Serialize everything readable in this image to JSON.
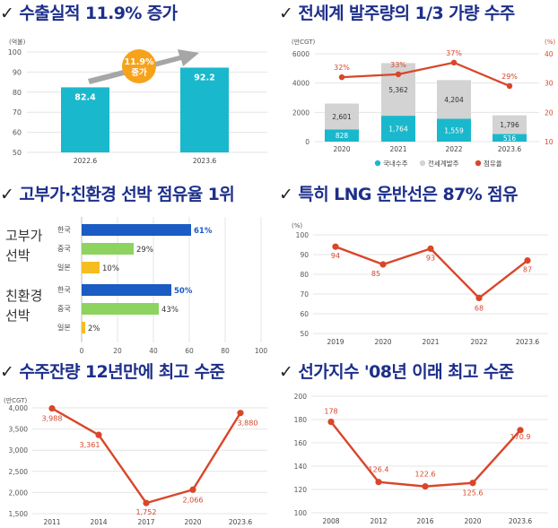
{
  "colors": {
    "title": "#1d2f8a",
    "teal": "#1ab8cc",
    "gray": "#d3d3d3",
    "red": "#d9462a",
    "blue": "#1a5bc4",
    "green": "#8dd35f",
    "yellow": "#f6bd21",
    "orange": "#f7a21b",
    "arrow": "#a6a6a6",
    "grid": "#e4e4e4"
  },
  "panels": [
    {
      "title": "✓ 수출실적 11.9% 증가"
    },
    {
      "title": "✓ 전세계 발주량의 1/3 가량 수주"
    },
    {
      "title": "✓ 고부가·친환경 선박 점유율 1위"
    },
    {
      "title": "✓ 특히 LNG 운반선은 87% 점유"
    },
    {
      "title": "✓ 수주잔량 12년만에 최고 수준"
    },
    {
      "title": "✓ 선가지수 '08년 이래 최고 수준"
    }
  ],
  "chart_data": [
    {
      "type": "bar",
      "title": "수출실적 11.9% 증가",
      "unit": "(억불)",
      "categories": [
        "2022.6",
        "2023.6"
      ],
      "values": [
        82.4,
        92.2
      ],
      "ylim": [
        50,
        100
      ],
      "yticks": [
        50,
        60,
        70,
        80,
        90,
        100
      ],
      "annotation": [
        "11.9%",
        "증가"
      ]
    },
    {
      "type": "bar",
      "title": "전세계 발주량의 1/3 가량 수주",
      "unit_left": "(만CGT)",
      "unit_right": "(%)",
      "categories": [
        "2020",
        "2021",
        "2022",
        "2023.6"
      ],
      "series": [
        {
          "name": "국내수주",
          "values": [
            828,
            1764,
            1559,
            516
          ]
        },
        {
          "name": "전세계발주",
          "values": [
            2601,
            5362,
            4204,
            1796
          ]
        },
        {
          "name": "점유율",
          "values": [
            32,
            33,
            37,
            29
          ]
        }
      ],
      "ylim_left": [
        0,
        6000
      ],
      "yticks_left": [
        0,
        2000,
        4000,
        6000
      ],
      "ylim_right": [
        10,
        40
      ],
      "yticks_right": [
        10,
        20,
        30,
        40
      ],
      "value_labels": {
        "domestic": [
          "828",
          "1,764",
          "1,559",
          "516"
        ],
        "world": [
          "2,601",
          "5,362",
          "4,204",
          "1,796"
        ],
        "share": [
          "32%",
          "33%",
          "37%",
          "29%"
        ]
      },
      "legend": [
        "국내수주",
        "전세계발주",
        "점유율"
      ]
    },
    {
      "type": "bar",
      "title": "고부가·친환경 선박 점유율 1위",
      "groups": [
        {
          "name": [
            "고부가",
            "선박"
          ],
          "bars": [
            {
              "country": "한국",
              "value": 61,
              "label": "61%"
            },
            {
              "country": "중국",
              "value": 29,
              "label": "29%"
            },
            {
              "country": "일본",
              "value": 10,
              "label": "10%"
            }
          ]
        },
        {
          "name": [
            "친환경",
            "선박"
          ],
          "bars": [
            {
              "country": "한국",
              "value": 50,
              "label": "50%"
            },
            {
              "country": "중국",
              "value": 43,
              "label": "43%"
            },
            {
              "country": "일본",
              "value": 2,
              "label": "2%"
            }
          ]
        }
      ],
      "xlim": [
        0,
        100
      ],
      "xticks": [
        0,
        20,
        40,
        60,
        80,
        100
      ]
    },
    {
      "type": "line",
      "title": "특히 LNG 운반선은 87% 점유",
      "unit": "(%)",
      "x": [
        "2019",
        "2020",
        "2021",
        "2022",
        "2023.6"
      ],
      "values": [
        94,
        85,
        93,
        68,
        87
      ],
      "ylim": [
        50,
        100
      ],
      "yticks": [
        50,
        60,
        70,
        80,
        90,
        100
      ]
    },
    {
      "type": "line",
      "title": "수주잔량 12년만에 최고 수준",
      "unit": "(만CGT)",
      "x": [
        "2011",
        "2014",
        "2017",
        "2020",
        "2023.6"
      ],
      "values": [
        3988,
        3361,
        1752,
        2066,
        3880
      ],
      "value_labels": [
        "3,988",
        "3,361",
        "1,752",
        "2,066",
        "3,880"
      ],
      "ylim": [
        1500,
        4000
      ],
      "yticks": [
        "1,500",
        "2,000",
        "2,500",
        "3,000",
        "3,500",
        "4,000"
      ],
      "ytick_values": [
        1500,
        2000,
        2500,
        3000,
        3500,
        4000
      ]
    },
    {
      "type": "line",
      "title": "선가지수 '08년 이래 최고 수준",
      "x": [
        "2008",
        "2012",
        "2016",
        "2020",
        "2023.6"
      ],
      "values": [
        178,
        126.4,
        122.6,
        125.6,
        170.9
      ],
      "value_labels": [
        "178",
        "126.4",
        "122.6",
        "125.6",
        "170.9"
      ],
      "ylim": [
        100,
        200
      ],
      "yticks": [
        100,
        120,
        140,
        160,
        180,
        200
      ]
    }
  ]
}
